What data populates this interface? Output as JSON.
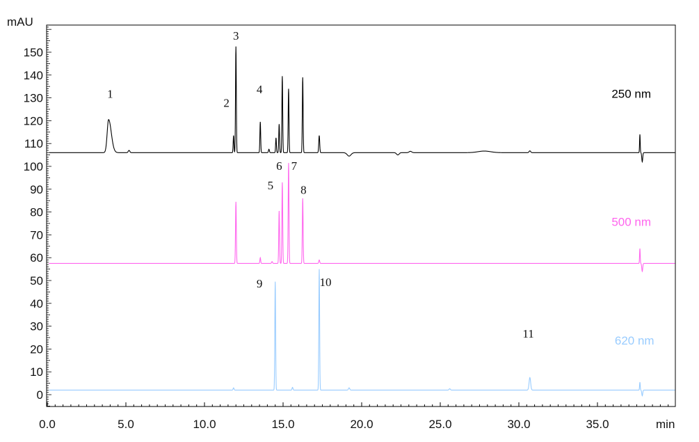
{
  "chart_data": {
    "type": "line",
    "xlabel": "min",
    "ylabel": "mAU",
    "xlim": [
      0,
      40
    ],
    "ylim": [
      -5,
      165
    ],
    "grid": false,
    "x_ticks": [
      "0.0",
      "5.0",
      "10.0",
      "15.0",
      "20.0",
      "25.0",
      "30.0",
      "35.0"
    ],
    "y_ticks": [
      "0",
      "10",
      "20",
      "30",
      "40",
      "50",
      "60",
      "70",
      "80",
      "90",
      "100",
      "110",
      "120",
      "130",
      "140",
      "150"
    ],
    "series": [
      {
        "name": "250 nm",
        "color": "#000000",
        "baseline": 106,
        "peaks": [
          {
            "t": 3.9,
            "h": 14.5,
            "w": 0.09,
            "tail": 0.3
          },
          {
            "t": 5.2,
            "h": 1.0,
            "w": 0.05,
            "tail": 0
          },
          {
            "t": 11.85,
            "h": 7.5,
            "w": 0.025,
            "tail": 0
          },
          {
            "t": 12.0,
            "h": 46.5,
            "w": 0.025,
            "tail": 0
          },
          {
            "t": 13.55,
            "h": 13.5,
            "w": 0.025,
            "tail": 0
          },
          {
            "t": 14.1,
            "h": 1.5,
            "w": 0.03,
            "tail": 0
          },
          {
            "t": 14.55,
            "h": 6.5,
            "w": 0.025,
            "tail": 0
          },
          {
            "t": 14.75,
            "h": 12.5,
            "w": 0.025,
            "tail": 0
          },
          {
            "t": 14.95,
            "h": 33.5,
            "w": 0.025,
            "tail": 0
          },
          {
            "t": 15.35,
            "h": 28.0,
            "w": 0.025,
            "tail": 0
          },
          {
            "t": 16.25,
            "h": 33.0,
            "w": 0.025,
            "tail": 0
          },
          {
            "t": 17.3,
            "h": 7.5,
            "w": 0.03,
            "tail": 0
          },
          {
            "t": 19.2,
            "h": -1.5,
            "w": 0.12,
            "tail": 0
          },
          {
            "t": 22.3,
            "h": -1.0,
            "w": 0.08,
            "tail": 0
          },
          {
            "t": 23.1,
            "h": 0.6,
            "w": 0.08,
            "tail": 0
          },
          {
            "t": 27.8,
            "h": 0.7,
            "w": 0.4,
            "tail": 0
          },
          {
            "t": 30.7,
            "h": 0.8,
            "w": 0.05,
            "tail": 0
          },
          {
            "t": 37.7,
            "h": 8.0,
            "w": 0.02,
            "tail": 0
          },
          {
            "t": 37.85,
            "h": -4.0,
            "w": 0.03,
            "tail": 0
          }
        ]
      },
      {
        "name": "500 nm",
        "color": "#ff66ee",
        "baseline": 57.5,
        "peaks": [
          {
            "t": 12.0,
            "h": 27.0,
            "w": 0.025,
            "tail": 0
          },
          {
            "t": 13.55,
            "h": 2.5,
            "w": 0.025,
            "tail": 0
          },
          {
            "t": 14.3,
            "h": 0.8,
            "w": 0.03,
            "tail": 0
          },
          {
            "t": 14.75,
            "h": 23.0,
            "w": 0.025,
            "tail": 0
          },
          {
            "t": 14.95,
            "h": 35.5,
            "w": 0.025,
            "tail": 0
          },
          {
            "t": 15.35,
            "h": 44.0,
            "w": 0.025,
            "tail": 0
          },
          {
            "t": 16.25,
            "h": 28.5,
            "w": 0.025,
            "tail": 0
          },
          {
            "t": 17.3,
            "h": 1.5,
            "w": 0.03,
            "tail": 0
          },
          {
            "t": 37.7,
            "h": 6.5,
            "w": 0.02,
            "tail": 0
          },
          {
            "t": 37.85,
            "h": -3.5,
            "w": 0.03,
            "tail": 0
          }
        ]
      },
      {
        "name": "620 nm",
        "color": "#99ccff",
        "baseline": 2.0,
        "peaks": [
          {
            "t": 11.85,
            "h": 1.0,
            "w": 0.03,
            "tail": 0
          },
          {
            "t": 14.5,
            "h": 47.5,
            "w": 0.025,
            "tail": 0
          },
          {
            "t": 15.6,
            "h": 1.2,
            "w": 0.03,
            "tail": 0
          },
          {
            "t": 17.3,
            "h": 53.0,
            "w": 0.025,
            "tail": 0
          },
          {
            "t": 19.2,
            "h": 1.0,
            "w": 0.04,
            "tail": 0
          },
          {
            "t": 25.6,
            "h": 0.6,
            "w": 0.04,
            "tail": 0
          },
          {
            "t": 30.7,
            "h": 5.5,
            "w": 0.05,
            "tail": 0
          },
          {
            "t": 37.7,
            "h": 3.5,
            "w": 0.02,
            "tail": 0
          },
          {
            "t": 37.85,
            "h": -2.5,
            "w": 0.03,
            "tail": 0
          }
        ]
      }
    ],
    "series_labels": [
      {
        "text": "250 nm",
        "color": "#000000",
        "t": 35.9,
        "v": 130
      },
      {
        "text": "500 nm",
        "color": "#ff66ee",
        "t": 35.9,
        "v": 74
      },
      {
        "text": "620 nm",
        "color": "#99ccff",
        "t": 36.1,
        "v": 22
      }
    ],
    "peak_labels": [
      {
        "text": "1",
        "t": 4.0,
        "v": 130
      },
      {
        "text": "2",
        "t": 11.4,
        "v": 126
      },
      {
        "text": "3",
        "t": 12.0,
        "v": 155.5
      },
      {
        "text": "4",
        "t": 13.5,
        "v": 132
      },
      {
        "text": "5",
        "t": 14.2,
        "v": 90
      },
      {
        "text": "6",
        "t": 14.75,
        "v": 98.5
      },
      {
        "text": "7",
        "t": 15.7,
        "v": 98.5
      },
      {
        "text": "8",
        "t": 16.3,
        "v": 88
      },
      {
        "text": "9",
        "t": 13.5,
        "v": 47
      },
      {
        "text": "10",
        "t": 17.7,
        "v": 47.5
      },
      {
        "text": "11",
        "t": 30.6,
        "v": 25
      }
    ]
  }
}
